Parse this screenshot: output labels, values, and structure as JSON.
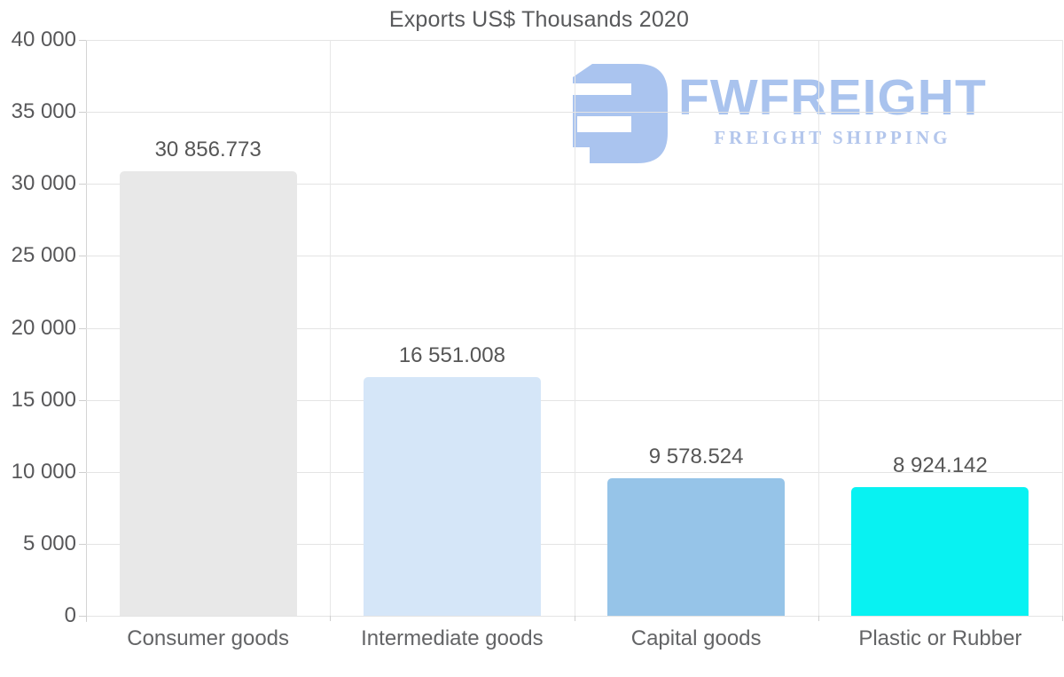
{
  "title": "Exports US$ Thousands 2020",
  "logo": {
    "name": "FWFREIGHT",
    "tagline": "FREIGHT SHIPPING",
    "icon_color": "#aac4ef",
    "name_color": "#a9c3ee",
    "tagline_color": "#b3c6ec"
  },
  "chart_data": {
    "type": "bar",
    "title": "Exports US$ Thousands 2020",
    "categories": [
      "Consumer goods",
      "Intermediate goods",
      "Capital goods",
      "Plastic or Rubber"
    ],
    "values": [
      30856.773,
      16551.008,
      9578.524,
      8924.142
    ],
    "value_labels": [
      "30 856.773",
      "16 551.008",
      "9 578.524",
      "8 924.142"
    ],
    "bar_colors": [
      "#e8e8e8",
      "#d5e6f8",
      "#96c4e8",
      "#08f2f2"
    ],
    "xlabel": "",
    "ylabel": "",
    "ylim": [
      0,
      40000
    ],
    "ytick_step": 5000,
    "ytick_labels": [
      "0",
      "5 000",
      "10 000",
      "15 000",
      "20 000",
      "25 000",
      "30 000",
      "35 000",
      "40 000"
    ],
    "grid": "horizontal gridlines at each ytick; vertical gridlines at category boundaries",
    "legend": "none",
    "colors": {
      "gridline": "#e4e4e4",
      "axis_line": "#d4d4d4",
      "axis_text": "#58585a",
      "value_text": "#565656",
      "title_text": "#58595b",
      "background": "#ffffff"
    }
  }
}
